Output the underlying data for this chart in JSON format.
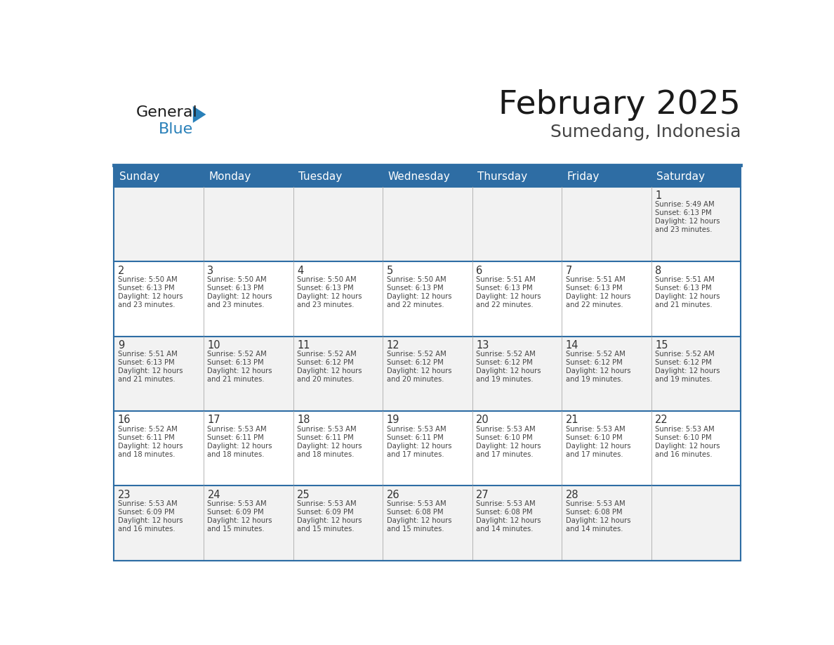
{
  "title": "February 2025",
  "subtitle": "Sumedang, Indonesia",
  "header_bg": "#2E6DA4",
  "header_text_color": "#FFFFFF",
  "cell_bg_odd": "#F2F2F2",
  "cell_bg_even": "#FFFFFF",
  "border_color": "#2E6DA4",
  "inner_line_color": "#AAAAAA",
  "text_color": "#444444",
  "day_number_color": "#333333",
  "days_of_week": [
    "Sunday",
    "Monday",
    "Tuesday",
    "Wednesday",
    "Thursday",
    "Friday",
    "Saturday"
  ],
  "logo_color1": "#1a1a1a",
  "logo_color2": "#2980B9",
  "calendar_data": [
    [
      null,
      null,
      null,
      null,
      null,
      null,
      {
        "day": 1,
        "sunrise": "5:49 AM",
        "sunset": "6:13 PM",
        "daylight": "12 hours and 23 minutes."
      }
    ],
    [
      {
        "day": 2,
        "sunrise": "5:50 AM",
        "sunset": "6:13 PM",
        "daylight": "12 hours and 23 minutes."
      },
      {
        "day": 3,
        "sunrise": "5:50 AM",
        "sunset": "6:13 PM",
        "daylight": "12 hours and 23 minutes."
      },
      {
        "day": 4,
        "sunrise": "5:50 AM",
        "sunset": "6:13 PM",
        "daylight": "12 hours and 23 minutes."
      },
      {
        "day": 5,
        "sunrise": "5:50 AM",
        "sunset": "6:13 PM",
        "daylight": "12 hours and 22 minutes."
      },
      {
        "day": 6,
        "sunrise": "5:51 AM",
        "sunset": "6:13 PM",
        "daylight": "12 hours and 22 minutes."
      },
      {
        "day": 7,
        "sunrise": "5:51 AM",
        "sunset": "6:13 PM",
        "daylight": "12 hours and 22 minutes."
      },
      {
        "day": 8,
        "sunrise": "5:51 AM",
        "sunset": "6:13 PM",
        "daylight": "12 hours and 21 minutes."
      }
    ],
    [
      {
        "day": 9,
        "sunrise": "5:51 AM",
        "sunset": "6:13 PM",
        "daylight": "12 hours and 21 minutes."
      },
      {
        "day": 10,
        "sunrise": "5:52 AM",
        "sunset": "6:13 PM",
        "daylight": "12 hours and 21 minutes."
      },
      {
        "day": 11,
        "sunrise": "5:52 AM",
        "sunset": "6:12 PM",
        "daylight": "12 hours and 20 minutes."
      },
      {
        "day": 12,
        "sunrise": "5:52 AM",
        "sunset": "6:12 PM",
        "daylight": "12 hours and 20 minutes."
      },
      {
        "day": 13,
        "sunrise": "5:52 AM",
        "sunset": "6:12 PM",
        "daylight": "12 hours and 19 minutes."
      },
      {
        "day": 14,
        "sunrise": "5:52 AM",
        "sunset": "6:12 PM",
        "daylight": "12 hours and 19 minutes."
      },
      {
        "day": 15,
        "sunrise": "5:52 AM",
        "sunset": "6:12 PM",
        "daylight": "12 hours and 19 minutes."
      }
    ],
    [
      {
        "day": 16,
        "sunrise": "5:52 AM",
        "sunset": "6:11 PM",
        "daylight": "12 hours and 18 minutes."
      },
      {
        "day": 17,
        "sunrise": "5:53 AM",
        "sunset": "6:11 PM",
        "daylight": "12 hours and 18 minutes."
      },
      {
        "day": 18,
        "sunrise": "5:53 AM",
        "sunset": "6:11 PM",
        "daylight": "12 hours and 18 minutes."
      },
      {
        "day": 19,
        "sunrise": "5:53 AM",
        "sunset": "6:11 PM",
        "daylight": "12 hours and 17 minutes."
      },
      {
        "day": 20,
        "sunrise": "5:53 AM",
        "sunset": "6:10 PM",
        "daylight": "12 hours and 17 minutes."
      },
      {
        "day": 21,
        "sunrise": "5:53 AM",
        "sunset": "6:10 PM",
        "daylight": "12 hours and 17 minutes."
      },
      {
        "day": 22,
        "sunrise": "5:53 AM",
        "sunset": "6:10 PM",
        "daylight": "12 hours and 16 minutes."
      }
    ],
    [
      {
        "day": 23,
        "sunrise": "5:53 AM",
        "sunset": "6:09 PM",
        "daylight": "12 hours and 16 minutes."
      },
      {
        "day": 24,
        "sunrise": "5:53 AM",
        "sunset": "6:09 PM",
        "daylight": "12 hours and 15 minutes."
      },
      {
        "day": 25,
        "sunrise": "5:53 AM",
        "sunset": "6:09 PM",
        "daylight": "12 hours and 15 minutes."
      },
      {
        "day": 26,
        "sunrise": "5:53 AM",
        "sunset": "6:08 PM",
        "daylight": "12 hours and 15 minutes."
      },
      {
        "day": 27,
        "sunrise": "5:53 AM",
        "sunset": "6:08 PM",
        "daylight": "12 hours and 14 minutes."
      },
      {
        "day": 28,
        "sunrise": "5:53 AM",
        "sunset": "6:08 PM",
        "daylight": "12 hours and 14 minutes."
      },
      null
    ]
  ]
}
